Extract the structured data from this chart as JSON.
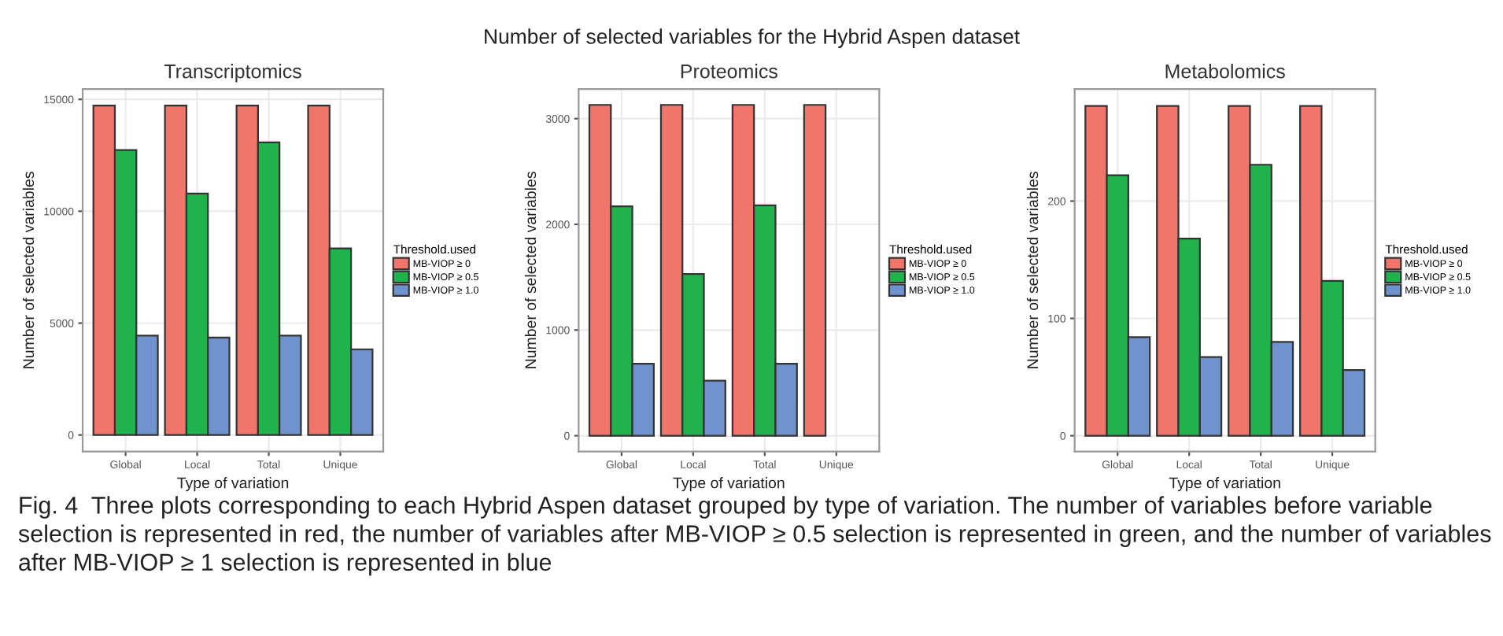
{
  "chart_data": [
    {
      "type": "bar",
      "title": "Transcriptomics",
      "xlabel": "Type of variation",
      "ylabel": "Number of selected variables",
      "legend_title": "Threshold.used",
      "annotations": [
        "Number of selected variables for the Hybrid Aspen dataset",
        "Fig. 4  Three plots corresponding to each Hybrid Aspen dataset grouped by type of variation. The number of variables before variable selection is represented in red, the number of variables after MB-VIOP ≥ 0.5 selection is represented in green, and the number of variables after MB-VIOP ≥ 1 selection is represented in blue"
      ],
      "categories": [
        "Global",
        "Local",
        "Total",
        "Unique"
      ],
      "series": [
        {
          "name": "MB-VIOP ≥ 0",
          "color": "#f0766c",
          "values": [
            14720,
            14720,
            14720,
            14720
          ]
        },
        {
          "name": "MB-VIOP ≥ 0.5",
          "color": "#22b24c",
          "values": [
            12730,
            10790,
            13080,
            8340
          ]
        },
        {
          "name": "MB-VIOP ≥ 1.0",
          "color": "#6f93cc",
          "values": [
            4440,
            4350,
            4440,
            3830
          ]
        }
      ],
      "ylim": [
        -740,
        15460
      ],
      "yticks": [
        0,
        5000,
        10000,
        15000
      ],
      "grid": true,
      "legend": "right"
    },
    {
      "type": "bar",
      "title": "Proteomics",
      "xlabel": "Type of variation",
      "ylabel": "Number of selected variables",
      "legend_title": "Threshold.used",
      "categories": [
        "Global",
        "Local",
        "Total",
        "Unique"
      ],
      "series": [
        {
          "name": "MB-VIOP ≥ 0",
          "color": "#f0766c",
          "values": [
            3130,
            3130,
            3130,
            3130
          ]
        },
        {
          "name": "MB-VIOP ≥ 0.5",
          "color": "#22b24c",
          "values": [
            2170,
            1530,
            2180,
            null
          ]
        },
        {
          "name": "MB-VIOP ≥ 1.0",
          "color": "#6f93cc",
          "values": [
            680,
            520,
            680,
            null
          ]
        }
      ],
      "ylim": [
        -150,
        3280
      ],
      "yticks": [
        0,
        1000,
        2000,
        3000
      ],
      "grid": true,
      "legend": "right"
    },
    {
      "type": "bar",
      "title": "Metabolomics",
      "xlabel": "Type of variation",
      "ylabel": "Number of selected variables",
      "legend_title": "Threshold.used",
      "categories": [
        "Global",
        "Local",
        "Total",
        "Unique"
      ],
      "series": [
        {
          "name": "MB-VIOP ≥ 0",
          "color": "#f0766c",
          "values": [
            281,
            281,
            281,
            281
          ]
        },
        {
          "name": "MB-VIOP ≥ 0.5",
          "color": "#22b24c",
          "values": [
            222,
            168,
            231,
            132
          ]
        },
        {
          "name": "MB-VIOP ≥ 1.0",
          "color": "#6f93cc",
          "values": [
            84,
            67,
            80,
            56
          ]
        }
      ],
      "ylim": [
        -13.5,
        295.5
      ],
      "yticks": [
        0,
        100,
        200
      ],
      "grid": true,
      "legend": "right"
    }
  ]
}
